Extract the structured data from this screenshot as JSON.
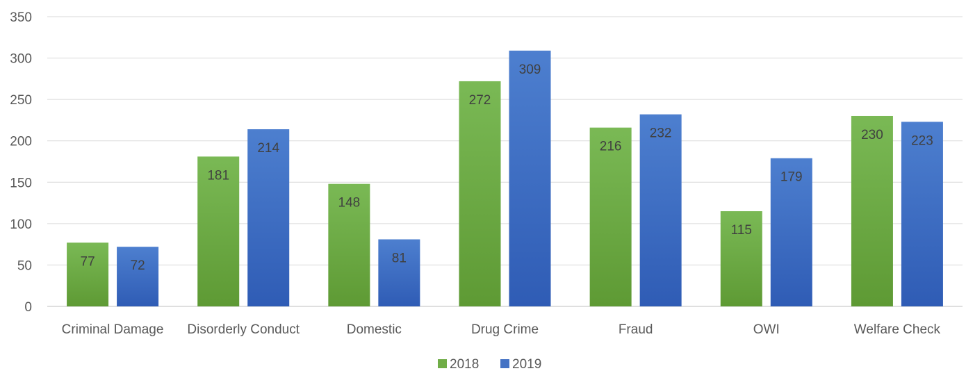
{
  "chart_data": {
    "type": "bar",
    "title": "",
    "xlabel": "",
    "ylabel": "",
    "categories": [
      "Criminal Damage",
      "Disorderly Conduct",
      "Domestic",
      "Drug Crime",
      "Fraud",
      "OWI",
      "Welfare Check"
    ],
    "series": [
      {
        "name": "2018",
        "values": [
          77,
          181,
          148,
          272,
          216,
          115,
          230
        ],
        "color": "#70ad47"
      },
      {
        "name": "2019",
        "values": [
          72,
          214,
          81,
          309,
          232,
          179,
          223
        ],
        "color": "#4472c4"
      }
    ],
    "ylim": [
      0,
      350
    ],
    "yticks": [
      0,
      50,
      100,
      150,
      200,
      250,
      300,
      350
    ],
    "grid": true,
    "legend_position": "bottom",
    "data_labels": "inside-end"
  }
}
